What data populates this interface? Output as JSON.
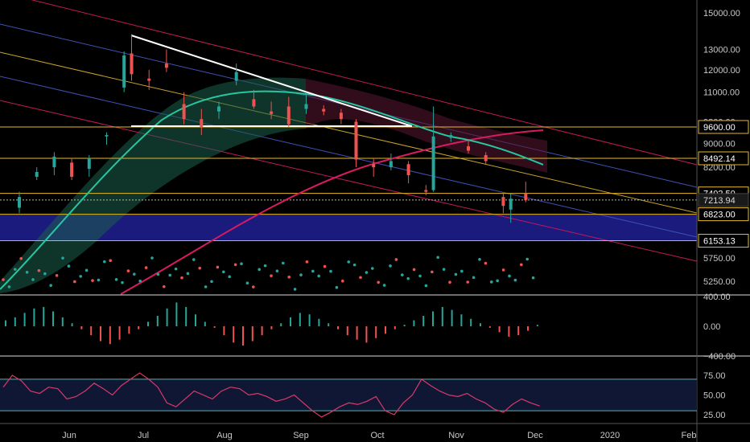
{
  "chart_data": {
    "type": "candlestick",
    "colors": {
      "background": "#000000",
      "up": "#26a69a",
      "down": "#ef5350",
      "axis_text": "#c8c8c8",
      "support_band": "#1e1e8c",
      "level_line": "#e6b829",
      "ma_200": "#d81b60",
      "ma_50": "#26c6a0",
      "trend_channel": "#c2185b",
      "blue_channel": "#3f51b5",
      "yellow_channel": "#c9a227",
      "trendline": "#ffffff",
      "rsi_line": "#d63a6a",
      "rsi_band": "#4db6ac",
      "current_price_tag": "#d9d9d9"
    },
    "price_pane": {
      "y_tick_labels": [
        "15000.00",
        "13000.00",
        "12000.00",
        "11000.00",
        "9800.00",
        "9000.00",
        "8200.00",
        "5750.00",
        "5250.00"
      ],
      "price_tags": [
        {
          "label": "9600.00",
          "kind": "level"
        },
        {
          "label": "8492.14",
          "kind": "level"
        },
        {
          "label": "7402.50",
          "kind": "level"
        },
        {
          "label": "7213.94",
          "kind": "current"
        },
        {
          "label": "6823.00",
          "kind": "level"
        },
        {
          "label": "6153.13",
          "kind": "level"
        }
      ]
    },
    "macd_pane": {
      "y_tick_labels": [
        "400.00",
        "0.00",
        "−400.00"
      ]
    },
    "rsi_pane": {
      "y_tick_labels": [
        "75.00",
        "50.00",
        "25.00"
      ],
      "upper_band": 70,
      "lower_band": 30
    },
    "x_axis": {
      "tick_labels": [
        "Jun",
        "Jul",
        "Aug",
        "Sep",
        "Oct",
        "Nov",
        "Dec",
        "2020",
        "Feb"
      ]
    },
    "series": [
      {
        "values": [
          [
            "May 12",
            7000,
            7450,
            6850,
            7300
          ],
          [
            "May 19",
            7900,
            8200,
            7800,
            8050
          ],
          [
            "May 26",
            8200,
            8700,
            7950,
            8550
          ],
          [
            "Jun 02",
            8350,
            8500,
            7800,
            7900
          ],
          [
            "Jun 09",
            8150,
            8600,
            7900,
            8500
          ],
          [
            "Jun 16",
            9250,
            9400,
            8950,
            9300
          ],
          [
            "Jun 23",
            11200,
            12900,
            11000,
            12700
          ],
          [
            "Jun 26",
            12800,
            13800,
            11500,
            11800
          ],
          [
            "Jul 03",
            11600,
            12000,
            11100,
            11500
          ],
          [
            "Jul 10",
            12300,
            13000,
            11900,
            12100
          ],
          [
            "Jul 17",
            10500,
            11000,
            9700,
            9900
          ],
          [
            "Jul 24",
            9900,
            10300,
            9300,
            9600
          ],
          [
            "Jul 31",
            10200,
            10600,
            9900,
            10400
          ],
          [
            "Aug 07",
            11500,
            12300,
            11300,
            11900
          ],
          [
            "Aug 14",
            10700,
            11100,
            10300,
            10400
          ],
          [
            "Aug 21",
            10200,
            10600,
            9900,
            10100
          ],
          [
            "Aug 28",
            10400,
            10800,
            9600,
            9700
          ],
          [
            "Sep 04",
            10300,
            10900,
            10100,
            10500
          ],
          [
            "Sep 11",
            10300,
            10450,
            10050,
            10200
          ],
          [
            "Sep 18",
            10150,
            10300,
            9700,
            9900
          ],
          [
            "Sep 24",
            9800,
            9900,
            8200,
            8450
          ],
          [
            "Oct 01",
            8300,
            8500,
            7900,
            8200
          ],
          [
            "Oct 08",
            8200,
            8650,
            8100,
            8400
          ],
          [
            "Oct 15",
            8300,
            8400,
            7700,
            7950
          ],
          [
            "Oct 22",
            7500,
            7650,
            7350,
            7450
          ],
          [
            "Oct 25",
            7500,
            10400,
            7450,
            9250
          ],
          [
            "Nov 01",
            9200,
            9400,
            9050,
            9300
          ],
          [
            "Nov 08",
            8900,
            9150,
            8650,
            8750
          ],
          [
            "Nov 15",
            8600,
            8700,
            8300,
            8400
          ],
          [
            "Nov 22",
            7300,
            7400,
            6850,
            7050
          ],
          [
            "Nov 25",
            6950,
            7400,
            6600,
            7250
          ],
          [
            "Dec 01",
            7400,
            7750,
            7150,
            7213.94
          ]
        ]
      }
    ]
  }
}
